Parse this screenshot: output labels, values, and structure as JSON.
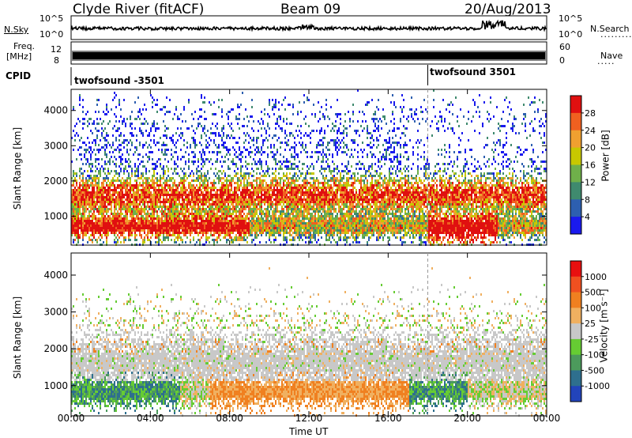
{
  "header": {
    "station": "Clyde River (fitACF)",
    "beam": "Beam 09",
    "date": "20/Aug/2013"
  },
  "strips": {
    "nsky_label": "N.Sky",
    "nsky_ticks": [
      "10^5",
      "10^0"
    ],
    "nsearch_label": "N.Search",
    "nsearch_ticks": [
      "10^5",
      "10^0"
    ],
    "freq_label_line1": "Freq.",
    "freq_label_line2": "[MHz]",
    "freq_ticks": [
      "12",
      "8"
    ],
    "nave_label": "Nave",
    "nave_ticks": [
      "60",
      "0"
    ],
    "cpid_label": "CPID",
    "cpid_segments": [
      {
        "name": "twofsound -3501",
        "start_hour": 0
      },
      {
        "name": "twofsound 3501",
        "start_hour": 18
      }
    ]
  },
  "chart_data": [
    {
      "type": "heatmap",
      "title": "",
      "ylabel": "Slant Range [km]",
      "xlabel": "",
      "xlim_hours": [
        0,
        24
      ],
      "ylim": [
        180,
        4600
      ],
      "yticks": [
        1000,
        2000,
        3000,
        4000
      ],
      "colorbar": {
        "label": "Power [dB]",
        "ticks": [
          "4",
          "8",
          "12",
          "16",
          "20",
          "24",
          "28"
        ],
        "colors": [
          "#1a1aee",
          "#2d5fb0",
          "#3f8a6e",
          "#6fb04a",
          "#c8c800",
          "#f0a030",
          "#f06020",
          "#e01010"
        ]
      },
      "mode_change_hour": 18,
      "main_scatter_band_km": [
        500,
        2200
      ],
      "strongest_echo_band_km": [
        500,
        1800
      ]
    },
    {
      "type": "heatmap",
      "title": "",
      "ylabel": "Slant Range [km]",
      "xlabel": "Time UT",
      "xlim_hours": [
        0,
        24
      ],
      "xticks": [
        "00:00",
        "04:00",
        "08:00",
        "12:00",
        "16:00",
        "20:00",
        "00:00"
      ],
      "ylim": [
        180,
        4600
      ],
      "yticks": [
        1000,
        2000,
        3000,
        4000
      ],
      "colorbar": {
        "label": "Velocity [m s⁻¹]",
        "ticks": [
          "1000",
          "500",
          "100",
          "25",
          "-25",
          "-100",
          "-500",
          "-1000"
        ],
        "colors": [
          "#2244bb",
          "#2e6f8e",
          "#4c9a5c",
          "#66cc33",
          "#c8c8c8",
          "#f0b060",
          "#f08020",
          "#f05020",
          "#e81010"
        ]
      },
      "mode_change_hour": 18,
      "ground_scatter_band_km": [
        1000,
        2500
      ]
    }
  ]
}
